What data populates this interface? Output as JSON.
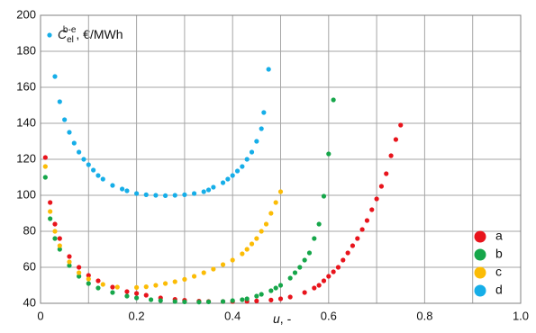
{
  "chart_data": {
    "type": "scatter",
    "y_label": {
      "symbol": "C",
      "subscript": "el",
      "superscript": "b-e",
      "unit": ", €/MWh"
    },
    "x_label": {
      "symbol": "u",
      "unit": ", -"
    },
    "xlim": [
      0,
      1
    ],
    "ylim": [
      40,
      200
    ],
    "xticks": [
      0,
      0.2,
      0.4,
      0.6,
      0.8,
      {
        "value": 1,
        "label": "1.0"
      }
    ],
    "yticks": [
      40,
      60,
      80,
      100,
      120,
      140,
      160,
      180,
      200
    ],
    "grid": true,
    "legend": "lower right",
    "series": [
      {
        "name": "a",
        "color": "#e8141c",
        "x": [
          0.01,
          0.02,
          0.03,
          0.04,
          0.06,
          0.08,
          0.1,
          0.12,
          0.15,
          0.18,
          0.2,
          0.22,
          0.25,
          0.28,
          0.3,
          0.33,
          0.35,
          0.38,
          0.4,
          0.43,
          0.45,
          0.48,
          0.5,
          0.52,
          0.55,
          0.57,
          0.58,
          0.59,
          0.6,
          0.61,
          0.62,
          0.63,
          0.64,
          0.65,
          0.66,
          0.67,
          0.68,
          0.69,
          0.7,
          0.71,
          0.72,
          0.73,
          0.74,
          0.75
        ],
        "values": [
          121,
          96,
          84,
          76,
          66,
          60,
          55.5,
          52.5,
          49,
          46.5,
          45.5,
          44.5,
          43,
          42.2,
          41.7,
          41.2,
          41,
          41,
          41,
          41.1,
          41.3,
          41.8,
          42.5,
          43.5,
          46,
          48.5,
          50,
          52.5,
          55,
          57.5,
          60,
          64,
          68,
          72,
          76,
          81,
          86,
          92,
          98,
          105,
          112,
          122,
          131,
          139
        ]
      },
      {
        "name": "b",
        "color": "#16a64a",
        "x": [
          0.01,
          0.02,
          0.03,
          0.04,
          0.06,
          0.08,
          0.1,
          0.12,
          0.15,
          0.18,
          0.2,
          0.23,
          0.25,
          0.28,
          0.3,
          0.33,
          0.35,
          0.38,
          0.4,
          0.42,
          0.43,
          0.45,
          0.46,
          0.48,
          0.49,
          0.5,
          0.52,
          0.53,
          0.54,
          0.55,
          0.56,
          0.57,
          0.58,
          0.59,
          0.6,
          0.61
        ],
        "values": [
          110,
          87,
          76,
          70,
          61,
          55,
          51,
          48.5,
          46,
          44,
          43,
          42,
          41.5,
          41,
          40.8,
          40.7,
          40.8,
          41,
          41.5,
          42,
          42.5,
          44,
          45,
          47,
          48.5,
          50,
          54,
          57,
          60,
          64,
          68,
          76,
          84,
          99.5,
          123,
          153
        ]
      },
      {
        "name": "c",
        "color": "#fbbc06",
        "x": [
          0.01,
          0.02,
          0.03,
          0.04,
          0.06,
          0.08,
          0.1,
          0.13,
          0.16,
          0.2,
          0.22,
          0.24,
          0.26,
          0.28,
          0.3,
          0.32,
          0.34,
          0.36,
          0.38,
          0.4,
          0.42,
          0.43,
          0.44,
          0.45,
          0.46,
          0.47,
          0.48,
          0.49,
          0.5
        ],
        "values": [
          116,
          91,
          80,
          72,
          63,
          57,
          53.5,
          50.5,
          49,
          48.8,
          49.2,
          50,
          51,
          52,
          53.3,
          55,
          57,
          59,
          61.5,
          64,
          67.5,
          70,
          73,
          76,
          80,
          84,
          90,
          96,
          102
        ]
      },
      {
        "name": "d",
        "color": "#16aee8",
        "x": [
          0.03,
          0.04,
          0.05,
          0.06,
          0.07,
          0.08,
          0.09,
          0.1,
          0.11,
          0.12,
          0.13,
          0.15,
          0.17,
          0.18,
          0.2,
          0.22,
          0.24,
          0.26,
          0.28,
          0.3,
          0.32,
          0.34,
          0.35,
          0.36,
          0.38,
          0.39,
          0.4,
          0.41,
          0.42,
          0.43,
          0.44,
          0.45,
          0.46,
          0.465,
          0.475
        ],
        "values": [
          166,
          152,
          142,
          135,
          129,
          124,
          120,
          117,
          114,
          111,
          109,
          105.5,
          103.5,
          102.5,
          101,
          100.3,
          100,
          99.8,
          100,
          100.3,
          101,
          102,
          103,
          104.5,
          107,
          109,
          111,
          113.5,
          116,
          120,
          124,
          130,
          137,
          146,
          170
        ]
      }
    ]
  }
}
